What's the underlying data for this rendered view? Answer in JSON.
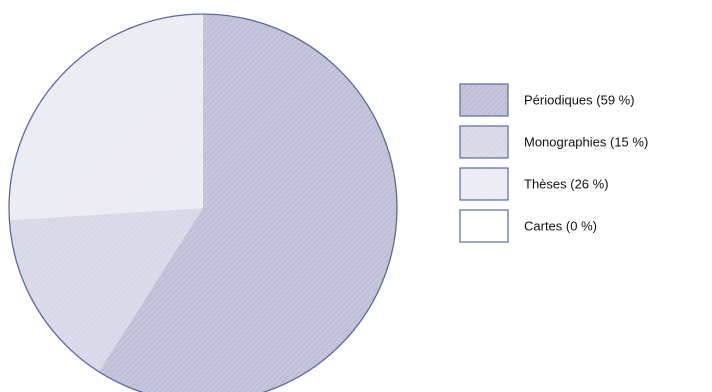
{
  "chart_data": {
    "type": "pie",
    "title": "",
    "start_angle_deg": 0,
    "direction": "clockwise",
    "legend_position": "right",
    "slices": [
      {
        "label": "Périodiques (59 %)",
        "value": 59,
        "color": "#bfc0d8"
      },
      {
        "label": "Monographies (15 %)",
        "value": 15,
        "color": "#d7d8e8"
      },
      {
        "label": "Thèses (26 %)",
        "value": 26,
        "color": "#ebebf3"
      },
      {
        "label": "Cartes (0 %)",
        "value": 0,
        "color": "#ffffff"
      }
    ],
    "outline_color": "#5a6a9e",
    "draw_order": [
      1,
      2,
      0
    ]
  }
}
